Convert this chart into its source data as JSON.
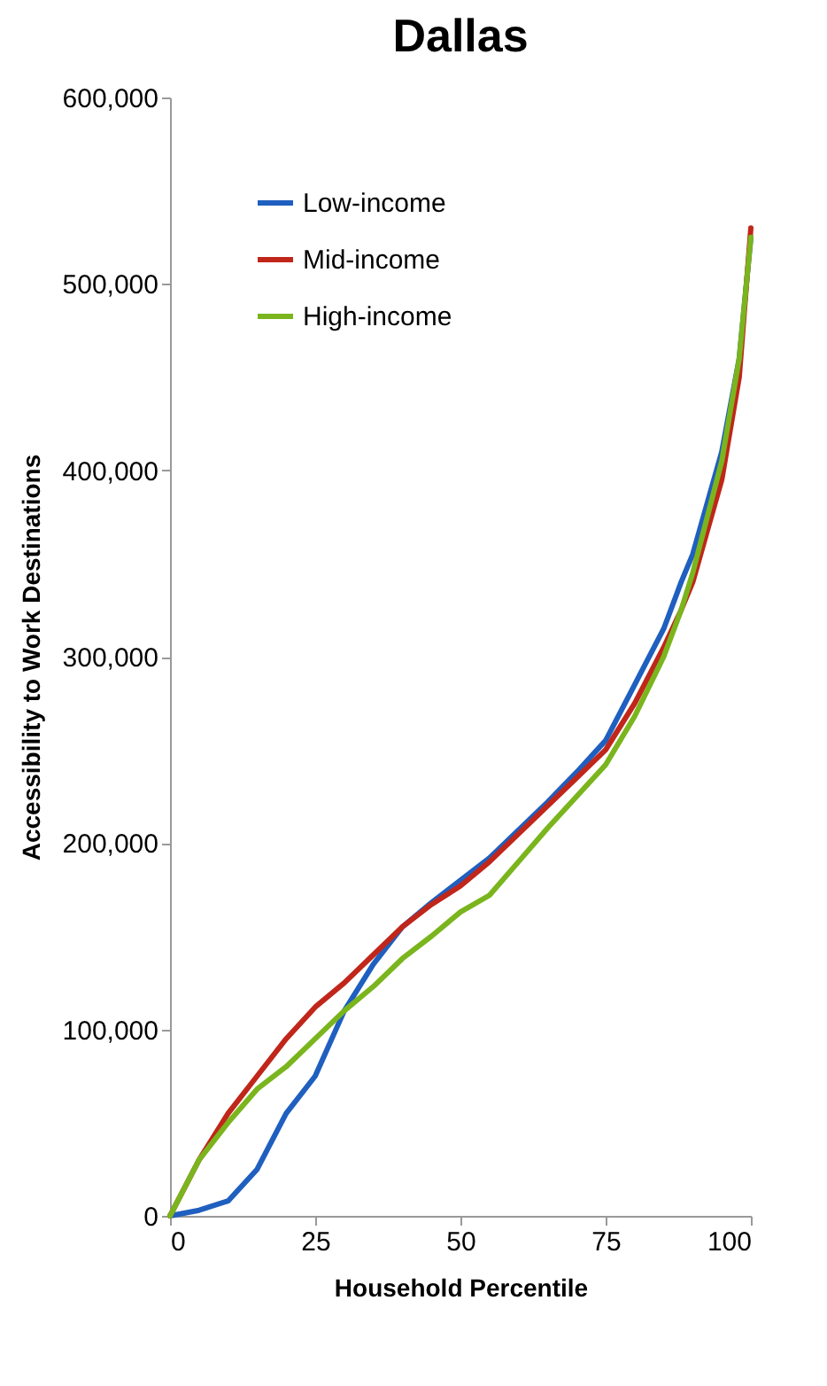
{
  "chart_data": {
    "type": "line",
    "title": "Dallas",
    "xlabel": "Household Percentile",
    "ylabel": "Accessibility to Work Destinations",
    "x": [
      0,
      5,
      10,
      15,
      20,
      25,
      30,
      35,
      40,
      45,
      50,
      55,
      60,
      65,
      70,
      75,
      80,
      85,
      88,
      90,
      95,
      98,
      100
    ],
    "series": [
      {
        "name": "Low-income",
        "color": "#1f5fbf",
        "values": [
          0,
          3000,
          8000,
          25000,
          55000,
          75000,
          110000,
          135000,
          155000,
          168000,
          180000,
          192000,
          207000,
          222000,
          238000,
          255000,
          285000,
          315000,
          340000,
          355000,
          410000,
          460000,
          525000
        ]
      },
      {
        "name": "Mid-income",
        "color": "#c0261a",
        "values": [
          0,
          30000,
          55000,
          75000,
          95000,
          112000,
          125000,
          140000,
          155000,
          167000,
          177000,
          190000,
          205000,
          220000,
          235000,
          250000,
          275000,
          305000,
          325000,
          340000,
          395000,
          450000,
          530000
        ]
      },
      {
        "name": "High-income",
        "color": "#7ab51d",
        "values": [
          0,
          30000,
          50000,
          68000,
          80000,
          95000,
          110000,
          123000,
          138000,
          150000,
          163000,
          172000,
          190000,
          208000,
          225000,
          242000,
          268000,
          300000,
          325000,
          345000,
          405000,
          460000,
          525000
        ]
      }
    ],
    "xlim": [
      0,
      100
    ],
    "xticks": [
      0,
      25,
      50,
      75,
      100
    ],
    "ylim": [
      0,
      600000
    ],
    "yticks": [
      0,
      {
        "value": 100000,
        "label": "100,000"
      },
      {
        "value": 200000,
        "label": "200,000"
      },
      {
        "value": 300000,
        "label": "300,000"
      },
      {
        "value": 400000,
        "label": "400,000"
      },
      {
        "value": 500000,
        "label": "500,000"
      },
      {
        "value": 600000,
        "label": "600,000"
      }
    ],
    "grid": false,
    "legend": "top left",
    "marker": "none",
    "line_style": "solid"
  }
}
